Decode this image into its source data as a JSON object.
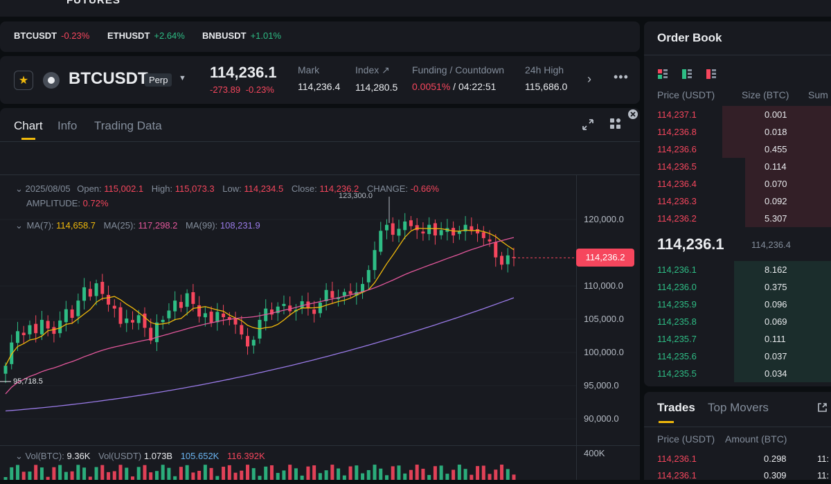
{
  "topbar": {
    "cut_text": "FUTURES"
  },
  "ticker": [
    {
      "symbol": "BTCUSDT",
      "change": "-0.23%",
      "dir": "down"
    },
    {
      "symbol": "ETHUSDT",
      "change": "+2.64%",
      "dir": "up"
    },
    {
      "symbol": "BNBUSDT",
      "change": "+1.01%",
      "dir": "up"
    }
  ],
  "header": {
    "symbol": "BTCUSDT",
    "contract": "Perp",
    "last_price": "114,236.1",
    "change_abs": "-273.89",
    "change_pct": "-0.23%",
    "mark_label": "Mark",
    "mark_value": "114,236.4",
    "index_label": "Index ↗",
    "index_value": "114,280.5",
    "funding_label": "Funding / Countdown",
    "funding_rate": "0.0051%",
    "funding_sep": "/",
    "countdown": "04:22:51",
    "high_label": "24h High",
    "high_value": "115,686.0"
  },
  "chart_tabs": [
    {
      "label": "Chart"
    },
    {
      "label": "Info"
    },
    {
      "label": "Trading Data"
    }
  ],
  "ohlc": {
    "date": "2025/08/05",
    "open_label": "Open:",
    "open": "115,002.1",
    "high_label": "High:",
    "high": "115,073.3",
    "low_label": "Low:",
    "low": "114,234.5",
    "close_label": "Close:",
    "close": "114,236.2",
    "change_label": "CHANGE:",
    "change": "-0.66%",
    "amplitude_label": "AMPLITUDE:",
    "amplitude": "0.72%"
  },
  "ma": {
    "ma7_label": "MA(7):",
    "ma7": "114,658.7",
    "ma25_label": "MA(25):",
    "ma25": "117,298.2",
    "ma99_label": "MA(99):",
    "ma99": "108,231.9"
  },
  "volume": {
    "btc_label": "Vol(BTC):",
    "btc": "9.36K",
    "usdt_label": "Vol(USDT)",
    "usdt": "1.073B",
    "v1": "105.652K",
    "v2": "116.392K",
    "axis": "400K"
  },
  "chart_data": {
    "type": "candlestick",
    "y_ticks": [
      "120,000.0",
      "110,000.0",
      "105,000.0",
      "100,000.0",
      "95,000.0",
      "90,000.0"
    ],
    "ylim": [
      89000,
      125500
    ],
    "high_annotation": "123,300.0",
    "low_annotation": "95,718.5",
    "current_price_tag": "114,236.2",
    "colors": {
      "up": "#2ebd85",
      "down": "#f6465d",
      "ma7": "#f0b90b",
      "ma25": "#e2579b",
      "ma99": "#9a7be8"
    },
    "closes": [
      98000,
      101500,
      103200,
      102600,
      104100,
      102900,
      104900,
      103600,
      102800,
      104800,
      106500,
      105200,
      107800,
      109800,
      108400,
      110400,
      108800,
      107200,
      106600,
      104300,
      105100,
      104500,
      105600,
      103700,
      101800,
      104500,
      104900,
      106300,
      107800,
      106700,
      108900,
      107300,
      105400,
      105900,
      104500,
      106100,
      105300,
      104900,
      104200,
      102700,
      100900,
      101900,
      104900,
      106600,
      105700,
      106900,
      107300,
      106200,
      106400,
      107700,
      106700,
      105800,
      107500,
      109400,
      108200,
      108300,
      109100,
      108800,
      109100,
      110300,
      112400,
      115400,
      118300,
      119200,
      117700,
      118600,
      119700,
      119000,
      118400,
      117900,
      119200,
      117600,
      118400,
      118700,
      117600,
      118300,
      119200,
      118400,
      117900,
      117200,
      116700,
      114300,
      113200,
      114600,
      114200
    ],
    "ma25_end": 117298.2,
    "ma99_end": 108231.9
  },
  "orderbook": {
    "title": "Order Book",
    "price_header": "Price (USDT)",
    "size_header": "Size (BTC)",
    "sum_header": "Sum",
    "asks": [
      {
        "price": "114,237.1",
        "size": "0.001",
        "depth": 0.58
      },
      {
        "price": "114,236.8",
        "size": "0.018",
        "depth": 0.58
      },
      {
        "price": "114,236.6",
        "size": "0.455",
        "depth": 0.58
      },
      {
        "price": "114,236.5",
        "size": "0.114",
        "depth": 0.46
      },
      {
        "price": "114,236.4",
        "size": "0.070",
        "depth": 0.46
      },
      {
        "price": "114,236.3",
        "size": "0.092",
        "depth": 0.46
      },
      {
        "price": "114,236.2",
        "size": "5.307",
        "depth": 0.46
      }
    ],
    "mid_price": "114,236.1",
    "mid_mark": "114,236.4",
    "bids": [
      {
        "price": "114,236.1",
        "size": "8.162",
        "depth": 0.52
      },
      {
        "price": "114,236.0",
        "size": "0.375",
        "depth": 0.52
      },
      {
        "price": "114,235.9",
        "size": "0.096",
        "depth": 0.52
      },
      {
        "price": "114,235.8",
        "size": "0.069",
        "depth": 0.52
      },
      {
        "price": "114,235.7",
        "size": "0.111",
        "depth": 0.52
      },
      {
        "price": "114,235.6",
        "size": "0.037",
        "depth": 0.52
      },
      {
        "price": "114,235.5",
        "size": "0.034",
        "depth": 0.52
      }
    ]
  },
  "trades": {
    "tab_trades": "Trades",
    "tab_movers": "Top Movers",
    "price_header": "Price (USDT)",
    "amount_header": "Amount (BTC)",
    "rows": [
      {
        "price": "114,236.1",
        "amount": "0.298",
        "time": "11:"
      },
      {
        "price": "114,236.1",
        "amount": "0.309",
        "time": "11:"
      }
    ]
  }
}
